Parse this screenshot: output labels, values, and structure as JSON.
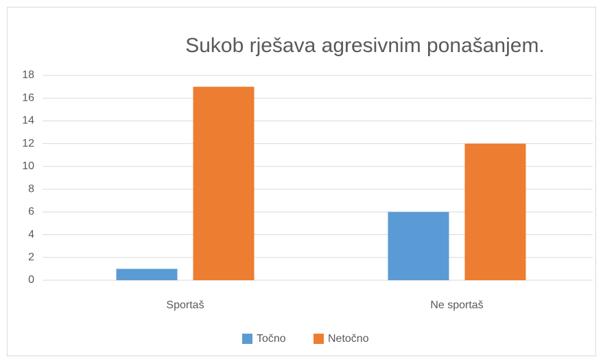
{
  "chart_data": {
    "type": "bar",
    "title": "Sukob rješava agresivnim ponašanjem.",
    "categories": [
      "Sportaš",
      "Ne sportaš"
    ],
    "series": [
      {
        "name": "Točno",
        "color": "#5b9bd5",
        "values": [
          1,
          6
        ]
      },
      {
        "name": "Netočno",
        "color": "#ed7d31",
        "values": [
          17,
          12
        ]
      }
    ],
    "ylim": [
      0,
      18
    ],
    "yticks": [
      0,
      2,
      4,
      6,
      8,
      10,
      12,
      14,
      16,
      18
    ],
    "grid": true,
    "legend": "bottom"
  }
}
